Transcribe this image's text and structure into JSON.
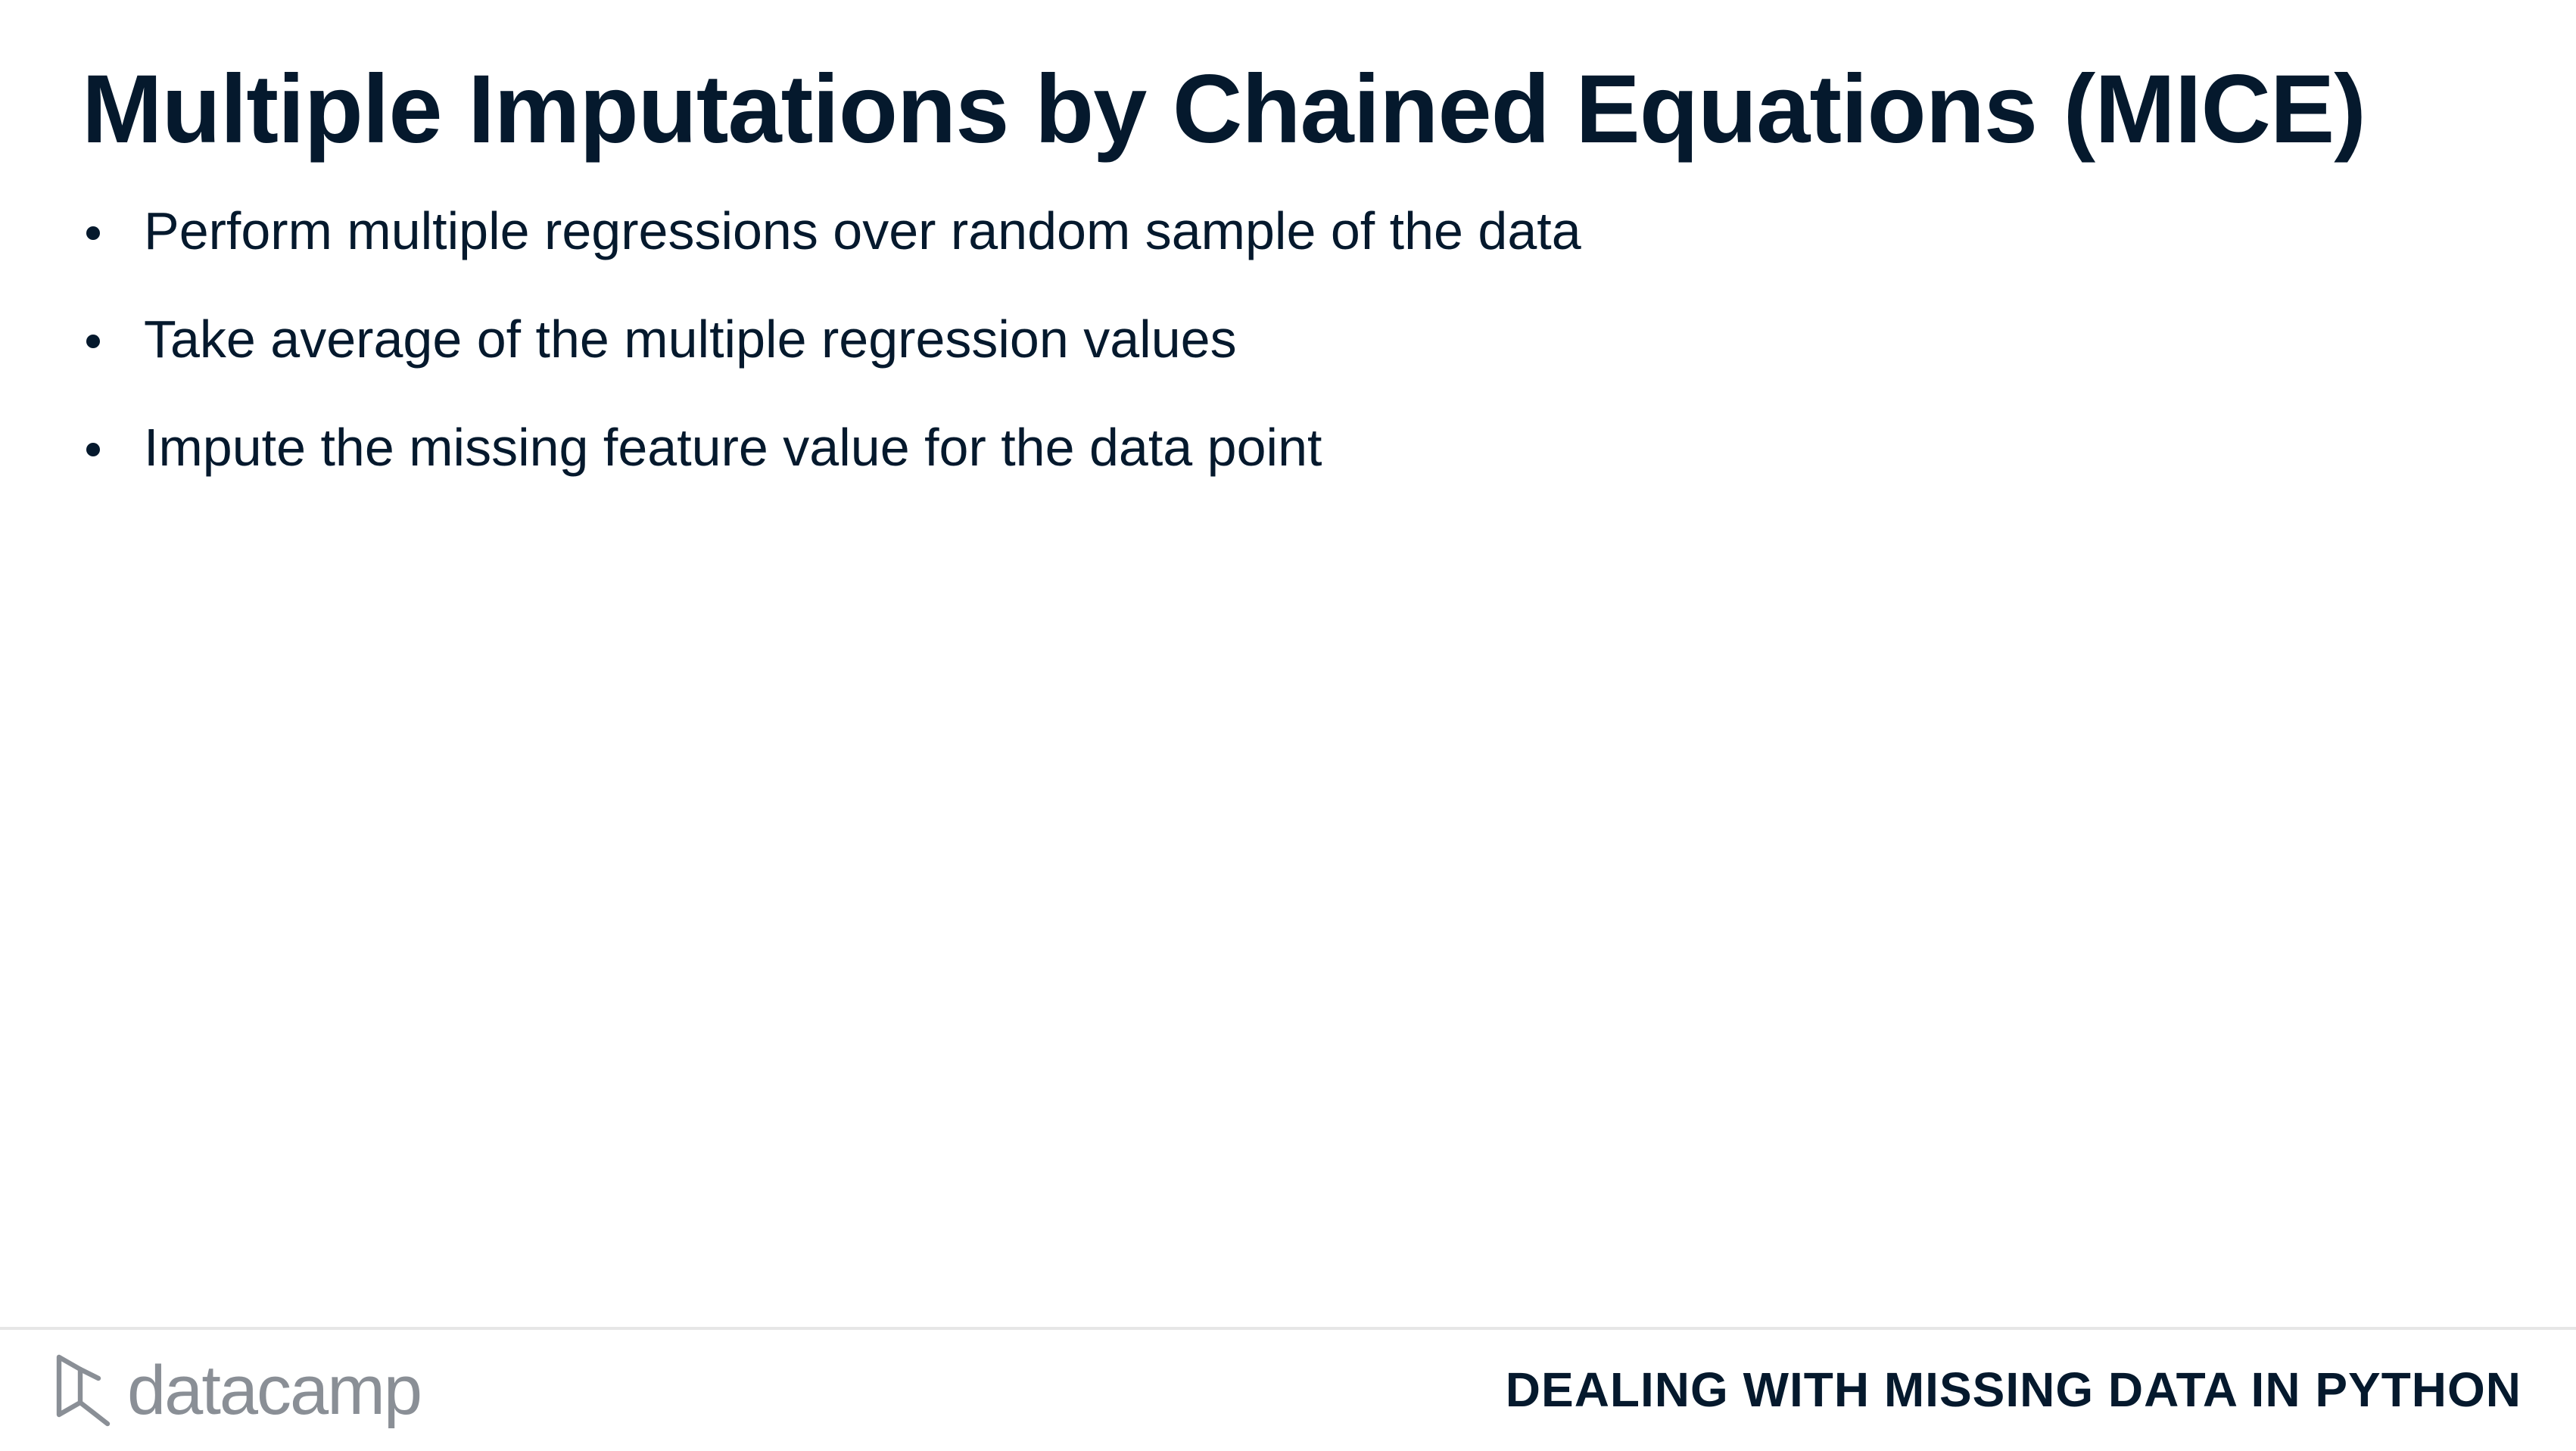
{
  "slide": {
    "title": "Multiple Imputations by Chained Equations (MICE)",
    "bullets": [
      "Perform multiple regressions over random sample of the data",
      "Take average of the multiple regression values",
      "Impute the missing feature value for the data point"
    ]
  },
  "footer": {
    "logo_text": "datacamp",
    "logo_icon": "datacamp-logo-icon",
    "course_title": "DEALING WITH MISSING DATA IN PYTHON"
  },
  "colors": {
    "text": "#05192d",
    "logo": "#8a8f96",
    "rule": "#e6e6e6",
    "background": "#ffffff"
  }
}
